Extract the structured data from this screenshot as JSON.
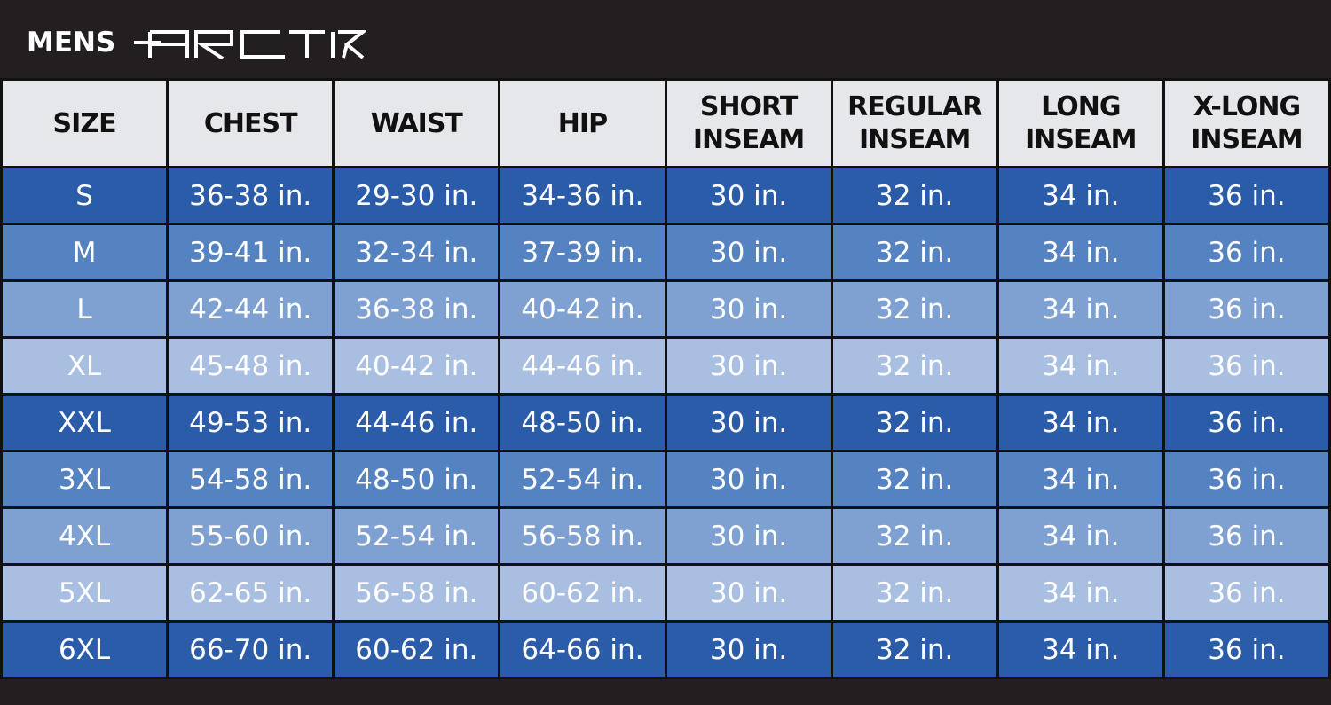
{
  "header": {
    "title": "MENS",
    "brand_logo": "ARCTIX"
  },
  "colors": {
    "top_bar": "#231f20",
    "header_bg": "#e6e7ea",
    "row_shades": [
      "#2a5ca9",
      "#5582c0",
      "#7ea1d2",
      "#a8bfe2"
    ]
  },
  "table": {
    "columns": [
      [
        "SIZE"
      ],
      [
        "CHEST"
      ],
      [
        "WAIST"
      ],
      [
        "HIP"
      ],
      [
        "SHORT",
        "INSEAM"
      ],
      [
        "REGULAR",
        "INSEAM"
      ],
      [
        "LONG",
        "INSEAM"
      ],
      [
        "X-LONG",
        "INSEAM"
      ]
    ],
    "rows": [
      [
        "S",
        "36-38 in.",
        "29-30 in.",
        "34-36 in.",
        "30 in.",
        "32 in.",
        "34 in.",
        "36 in."
      ],
      [
        "M",
        "39-41 in.",
        "32-34 in.",
        "37-39 in.",
        "30 in.",
        "32 in.",
        "34 in.",
        "36 in."
      ],
      [
        "L",
        "42-44 in.",
        "36-38 in.",
        "40-42 in.",
        "30 in.",
        "32 in.",
        "34 in.",
        "36 in."
      ],
      [
        "XL",
        "45-48 in.",
        "40-42 in.",
        "44-46 in.",
        "30 in.",
        "32 in.",
        "34 in.",
        "36 in."
      ],
      [
        "XXL",
        "49-53 in.",
        "44-46 in.",
        "48-50 in.",
        "30 in.",
        "32 in.",
        "34 in.",
        "36 in."
      ],
      [
        "3XL",
        "54-58 in.",
        "48-50 in.",
        "52-54 in.",
        "30 in.",
        "32 in.",
        "34 in.",
        "36 in."
      ],
      [
        "4XL",
        "55-60 in.",
        "52-54 in.",
        "56-58 in.",
        "30 in.",
        "32 in.",
        "34 in.",
        "36 in."
      ],
      [
        "5XL",
        "62-65 in.",
        "56-58 in.",
        "60-62 in.",
        "30 in.",
        "32 in.",
        "34 in.",
        "36 in."
      ],
      [
        "6XL",
        "66-70 in.",
        "60-62 in.",
        "64-66 in.",
        "30 in.",
        "32 in.",
        "34 in.",
        "36 in."
      ]
    ]
  }
}
